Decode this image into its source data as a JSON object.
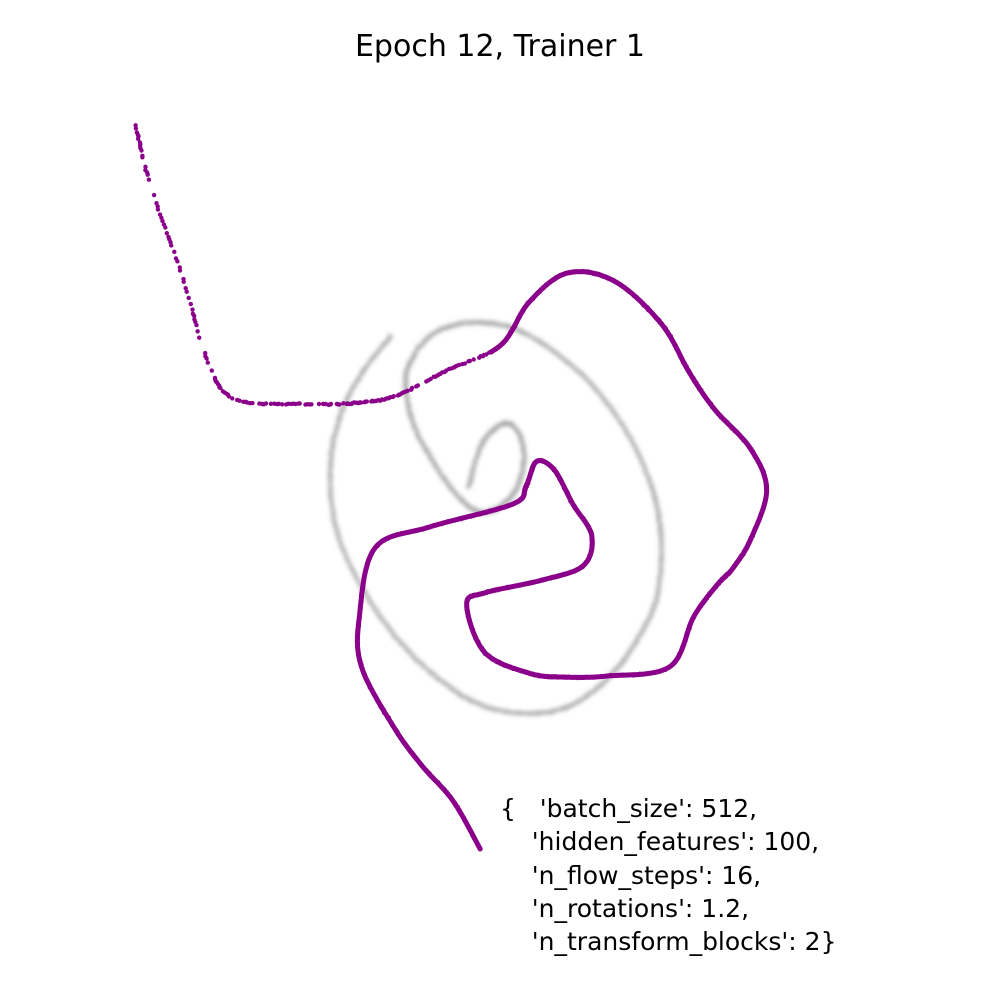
{
  "chart_data": {
    "type": "scatter",
    "title": "Epoch 12, Trainer 1",
    "xlabel": "",
    "ylabel": "",
    "axes_visible": false,
    "grid": false,
    "xlim": [
      -3.6,
      3.6
    ],
    "ylim": [
      -3.6,
      3.6
    ],
    "series": [
      {
        "role": "target",
        "color": "#a0a0a0",
        "style": "blurred-points",
        "description_shape": "spiral",
        "x": [
          -0.3,
          -0.2,
          -0.06,
          0.1,
          0.21,
          0.22,
          0.12,
          -0.05,
          -0.24,
          -0.45,
          -0.66,
          -0.82,
          -0.9,
          -0.88,
          -0.7,
          -0.44,
          -0.12,
          0.2,
          0.58,
          0.95,
          1.28,
          1.48,
          1.55,
          1.5,
          1.3,
          1.02,
          0.66,
          0.25,
          -0.2,
          -0.62,
          -1.02,
          -1.36,
          -1.58,
          -1.63,
          -1.53,
          -1.33,
          -1.05
        ],
        "y": [
          0.13,
          0.48,
          0.68,
          0.73,
          0.56,
          0.29,
          0.05,
          -0.09,
          -0.1,
          0.09,
          0.4,
          0.7,
          1.02,
          1.28,
          1.55,
          1.68,
          1.7,
          1.62,
          1.38,
          1.03,
          0.54,
          0.04,
          -0.44,
          -0.95,
          -1.37,
          -1.73,
          -1.98,
          -2.05,
          -1.96,
          -1.69,
          -1.29,
          -0.78,
          -0.24,
          0.32,
          0.82,
          1.21,
          1.57
        ]
      },
      {
        "role": "generated",
        "color": "#8b008b",
        "style": "points",
        "x": [
          -3.5,
          -3.35,
          -3.05,
          -2.8,
          -2.55,
          -1.9,
          -1.4,
          -1.0,
          -0.5,
          0.0,
          0.28,
          0.65,
          1.1,
          1.55,
          1.82,
          2.06,
          2.4,
          2.56,
          2.41,
          2.24,
          2.08,
          1.86,
          1.63,
          1.03,
          0.6,
          0.27,
          -0.15,
          -0.32,
          -0.14,
          0.4,
          0.8,
          0.88,
          0.7,
          0.52,
          0.35,
          0.25,
          0.12,
          -0.68,
          -1.2,
          -1.35,
          -1.33,
          -1.02,
          -0.75,
          -0.45,
          -0.19
        ],
        "y": [
          3.6,
          3.0,
          2.15,
          1.32,
          0.97,
          0.92,
          0.93,
          1.0,
          1.25,
          1.48,
          1.9,
          2.18,
          2.1,
          1.69,
          1.22,
          0.87,
          0.5,
          0.1,
          -0.37,
          -0.65,
          -0.82,
          -1.12,
          -1.6,
          -1.69,
          -1.7,
          -1.66,
          -1.46,
          -1.0,
          -0.89,
          -0.77,
          -0.63,
          -0.34,
          -0.04,
          0.29,
          0.37,
          0.13,
          -0.04,
          -0.26,
          -0.46,
          -1.12,
          -1.6,
          -2.18,
          -2.55,
          -2.89,
          -3.35
        ]
      }
    ],
    "annotation_lines": [
      "{   'batch_size': 512,",
      "    'hidden_features': 100,",
      "    'n_flow_steps': 16,",
      "    'n_rotations': 1.2,",
      "    'n_transform_blocks': 2}"
    ]
  }
}
